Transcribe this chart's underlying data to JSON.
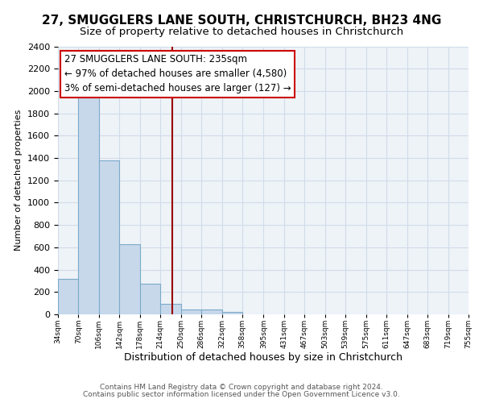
{
  "title": "27, SMUGGLERS LANE SOUTH, CHRISTCHURCH, BH23 4NG",
  "subtitle": "Size of property relative to detached houses in Christchurch",
  "xlabel": "Distribution of detached houses by size in Christchurch",
  "ylabel": "Number of detached properties",
  "bar_left_edges": [
    34,
    70,
    106,
    142,
    178,
    214,
    250,
    286,
    322,
    358,
    395,
    431,
    467,
    503,
    539,
    575,
    611,
    647,
    683,
    719
  ],
  "bar_heights": [
    320,
    1950,
    1380,
    630,
    275,
    95,
    45,
    40,
    20,
    0,
    0,
    0,
    0,
    0,
    0,
    0,
    0,
    0,
    0,
    0
  ],
  "bin_width": 36,
  "bar_color": "#c8d8eb",
  "bar_edge_color": "#7aaac8",
  "x_tick_labels": [
    "34sqm",
    "70sqm",
    "106sqm",
    "142sqm",
    "178sqm",
    "214sqm",
    "250sqm",
    "286sqm",
    "322sqm",
    "358sqm",
    "395sqm",
    "431sqm",
    "467sqm",
    "503sqm",
    "539sqm",
    "575sqm",
    "611sqm",
    "647sqm",
    "683sqm",
    "719sqm",
    "755sqm"
  ],
  "ylim": [
    0,
    2400
  ],
  "yticks": [
    0,
    200,
    400,
    600,
    800,
    1000,
    1200,
    1400,
    1600,
    1800,
    2000,
    2200,
    2400
  ],
  "property_size": 235,
  "vline_color": "#990000",
  "annotation_title": "27 SMUGGLERS LANE SOUTH: 235sqm",
  "annotation_line1": "← 97% of detached houses are smaller (4,580)",
  "annotation_line2": "3% of semi-detached houses are larger (127) →",
  "annotation_box_color": "#ffffff",
  "annotation_box_edge": "#cc0000",
  "footer_line1": "Contains HM Land Registry data © Crown copyright and database right 2024.",
  "footer_line2": "Contains public sector information licensed under the Open Government Licence v3.0.",
  "bg_color": "#ffffff",
  "grid_color": "#d0dce8",
  "title_fontsize": 11,
  "subtitle_fontsize": 9.5
}
